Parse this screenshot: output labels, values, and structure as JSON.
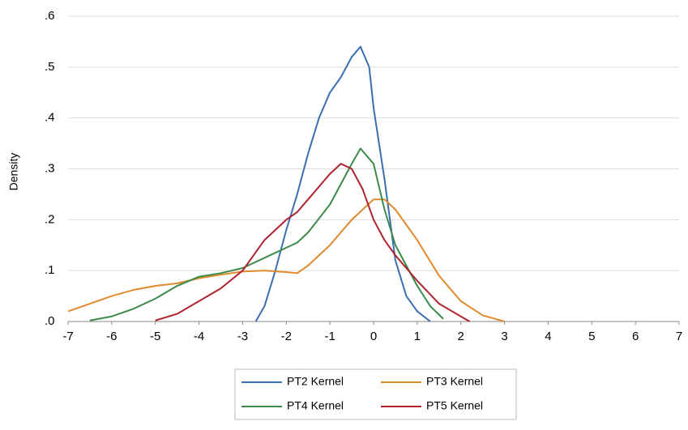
{
  "chart_data": {
    "type": "line",
    "y_label": "Density",
    "xlim": [
      -7,
      7
    ],
    "xticks": [
      -7,
      -6,
      -5,
      -4,
      -3,
      -2,
      -1,
      0,
      1,
      2,
      3,
      4,
      5,
      6,
      7
    ],
    "ylim": [
      0,
      0.6
    ],
    "yticks": [
      {
        "value": 0,
        "label": ".0"
      },
      {
        "value": 0.1,
        "label": ".1"
      },
      {
        "value": 0.2,
        "label": ".2"
      },
      {
        "value": 0.3,
        "label": ".3"
      },
      {
        "value": 0.4,
        "label": ".4"
      },
      {
        "value": 0.5,
        "label": ".5"
      },
      {
        "value": 0.6,
        "label": ".6"
      }
    ],
    "grid": true,
    "legend": "bottom",
    "series": [
      {
        "name": "PT2 Kernel",
        "color": "#3a6fb0",
        "x": [
          -2.7,
          -2.5,
          -2.25,
          -2,
          -1.75,
          -1.5,
          -1.25,
          -1,
          -0.75,
          -0.5,
          -0.3,
          -0.1,
          0,
          0.25,
          0.5,
          0.75,
          1,
          1.3
        ],
        "values": [
          0,
          0.03,
          0.1,
          0.18,
          0.25,
          0.33,
          0.4,
          0.45,
          0.48,
          0.52,
          0.54,
          0.5,
          0.42,
          0.28,
          0.12,
          0.05,
          0.02,
          0
        ]
      },
      {
        "name": "PT3 Kernel",
        "color": "#e08a2c",
        "x": [
          -7,
          -6.5,
          -6,
          -5.5,
          -5,
          -4.5,
          -4,
          -3.5,
          -3,
          -2.5,
          -2,
          -1.75,
          -1.5,
          -1,
          -0.5,
          0,
          0.25,
          0.5,
          1,
          1.5,
          2,
          2.5,
          3
        ],
        "values": [
          0.02,
          0.035,
          0.05,
          0.062,
          0.07,
          0.075,
          0.085,
          0.092,
          0.098,
          0.1,
          0.097,
          0.095,
          0.11,
          0.15,
          0.2,
          0.24,
          0.24,
          0.22,
          0.16,
          0.09,
          0.04,
          0.012,
          0
        ]
      },
      {
        "name": "PT4 Kernel",
        "color": "#3c8a4a",
        "x": [
          -6.5,
          -6,
          -5.5,
          -5,
          -4.5,
          -4,
          -3.5,
          -3,
          -2.5,
          -2,
          -1.75,
          -1.5,
          -1,
          -0.5,
          -0.3,
          0,
          0.25,
          0.5,
          1,
          1.3,
          1.6
        ],
        "values": [
          0.002,
          0.01,
          0.025,
          0.045,
          0.07,
          0.088,
          0.095,
          0.105,
          0.125,
          0.145,
          0.155,
          0.175,
          0.23,
          0.31,
          0.34,
          0.31,
          0.22,
          0.15,
          0.07,
          0.03,
          0.005
        ]
      },
      {
        "name": "PT5 Kernel",
        "color": "#b0232e",
        "x": [
          -5,
          -4.5,
          -4,
          -3.5,
          -3,
          -2.5,
          -2,
          -1.75,
          -1.5,
          -1,
          -0.75,
          -0.5,
          -0.25,
          0,
          0.25,
          0.5,
          1,
          1.5,
          2,
          2.2
        ],
        "values": [
          0.002,
          0.015,
          0.04,
          0.065,
          0.1,
          0.16,
          0.2,
          0.215,
          0.24,
          0.29,
          0.31,
          0.3,
          0.26,
          0.2,
          0.16,
          0.13,
          0.08,
          0.035,
          0.01,
          0
        ]
      }
    ]
  }
}
